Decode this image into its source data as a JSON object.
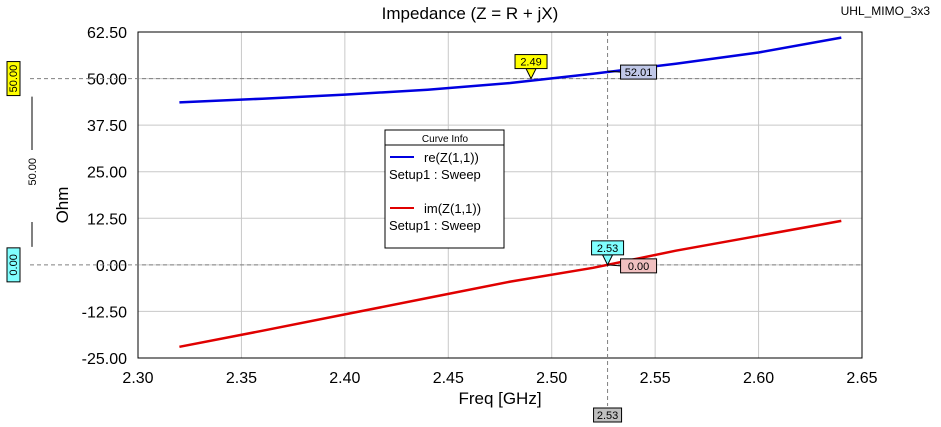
{
  "chart_data": {
    "type": "line",
    "title": "Impedance (Z = R + jX)",
    "project_label": "UHL_MIMO_3x3",
    "xlabel": "Freq [GHz]",
    "ylabel": "Ohm",
    "xlim": [
      2.3,
      2.65
    ],
    "ylim": [
      -25.0,
      62.5
    ],
    "x_ticks": [
      "2.30",
      "2.35",
      "2.40",
      "2.45",
      "2.50",
      "2.55",
      "2.60",
      "2.65"
    ],
    "y_ticks": [
      "62.50",
      "50.00",
      "37.50",
      "25.00",
      "12.50",
      "0.00",
      "-12.50",
      "-25.00"
    ],
    "grid": true,
    "legend": {
      "title": "Curve Info",
      "entries": [
        {
          "name": "re(Z(1,1))",
          "sub": "Setup1 : Sweep",
          "color": "#0000e0"
        },
        {
          "name": "im(Z(1,1))",
          "sub": "Setup1 : Sweep",
          "color": "#e00000"
        }
      ]
    },
    "series": [
      {
        "name": "re(Z(1,1))",
        "color": "#0000e0",
        "x": [
          2.32,
          2.36,
          2.4,
          2.44,
          2.48,
          2.52,
          2.56,
          2.6,
          2.64
        ],
        "y": [
          43.6,
          44.6,
          45.7,
          47.0,
          48.8,
          51.3,
          54.0,
          57.0,
          61.0
        ]
      },
      {
        "name": "im(Z(1,1))",
        "color": "#e00000",
        "x": [
          2.32,
          2.36,
          2.4,
          2.44,
          2.48,
          2.52,
          2.56,
          2.6,
          2.64
        ],
        "y": [
          -22.0,
          -17.7,
          -13.3,
          -8.9,
          -4.5,
          -0.8,
          3.8,
          7.8,
          11.8
        ]
      }
    ],
    "markers": {
      "h_line_values": [
        50.0,
        0.0
      ],
      "v_line_value": 2.527,
      "h_line_value_labels": [
        {
          "label": "50.00",
          "value": 50.0,
          "fill": "#ffff00"
        },
        {
          "label": "0.00",
          "value": 0.0,
          "fill": "#80ffff"
        }
      ],
      "delta_label": "50.00",
      "x_value_label": "2.53",
      "crossings": [
        {
          "label": "2.49",
          "x": 2.49,
          "y": 50.0,
          "fill": "#ffff00"
        },
        {
          "label": "2.53",
          "x": 2.527,
          "y": 0.0,
          "fill": "#80ffff"
        }
      ],
      "readouts": [
        {
          "label": "52.01",
          "x": 2.527,
          "y": 52.01,
          "fill": "#c0c8e8"
        },
        {
          "label": "0.00",
          "x": 2.527,
          "y": 0.0,
          "fill": "#f0c0c0"
        }
      ]
    }
  }
}
